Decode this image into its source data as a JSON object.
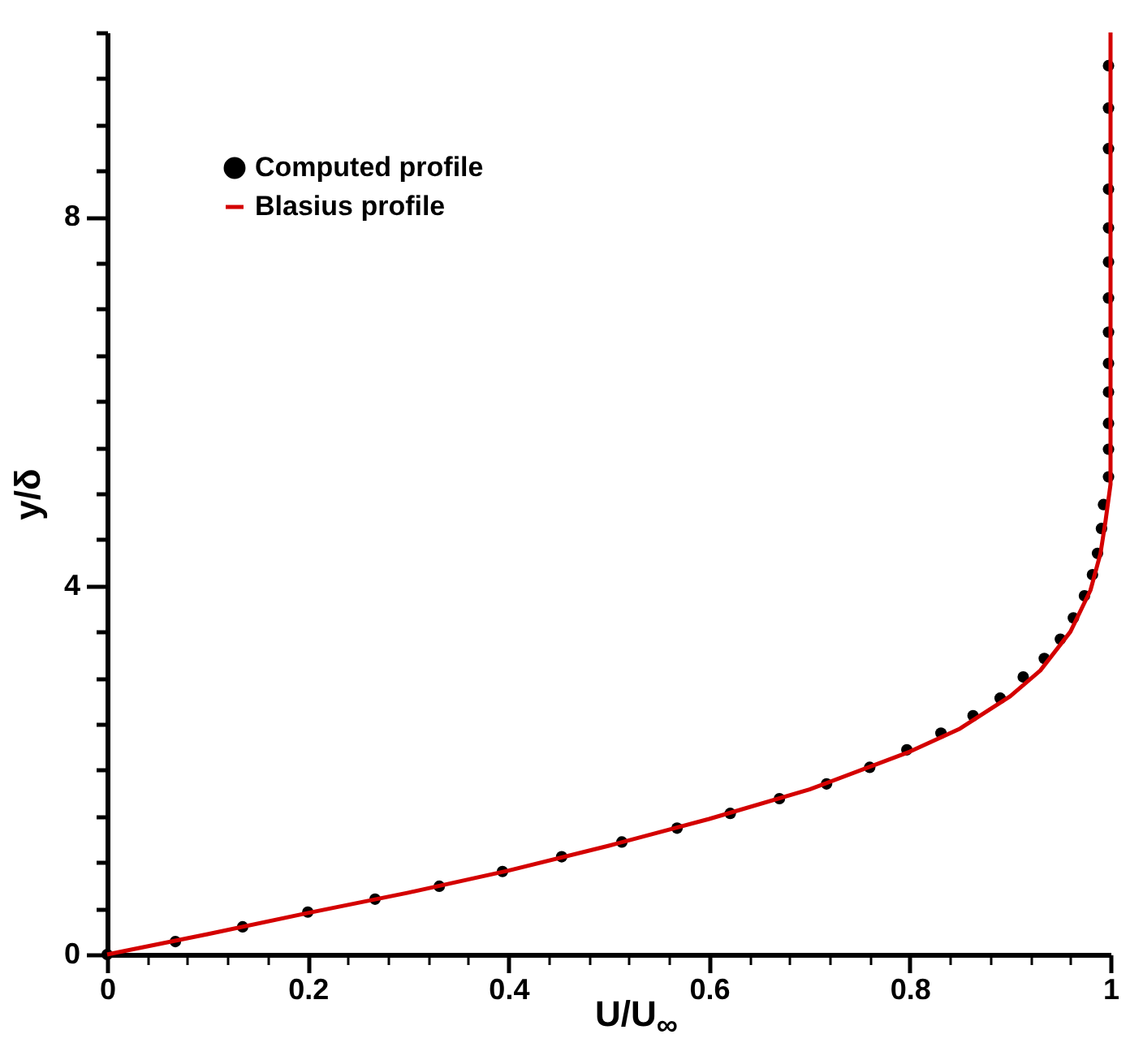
{
  "chart_data": {
    "type": "line",
    "xlabel": "U/U$_{∞}$",
    "ylabel": "y/δ",
    "xlim": [
      0,
      1
    ],
    "ylim": [
      0,
      10
    ],
    "xticks": [
      0,
      {
        "value": 0.04,
        "label": null
      },
      {
        "value": 0.08,
        "label": null
      },
      {
        "value": 0.12,
        "label": null
      },
      {
        "value": 0.16,
        "label": null
      },
      {
        "value": 0.2,
        "label": "0.2"
      },
      {
        "value": 0.24,
        "label": null
      },
      {
        "value": 0.28,
        "label": null
      },
      {
        "value": 0.32,
        "label": null
      },
      {
        "value": 0.36,
        "label": null
      },
      {
        "value": 0.4,
        "label": "0.4"
      },
      {
        "value": 0.44,
        "label": null
      },
      {
        "value": 0.48,
        "label": null
      },
      {
        "value": 0.52,
        "label": null
      },
      {
        "value": 0.56,
        "label": null
      },
      {
        "value": 0.6,
        "label": "0.6"
      },
      {
        "value": 0.64,
        "label": null
      },
      {
        "value": 0.68,
        "label": null
      },
      {
        "value": 0.72,
        "label": null
      },
      {
        "value": 0.76,
        "label": null
      },
      {
        "value": 0.8,
        "label": "0.8"
      },
      {
        "value": 0.84,
        "label": null
      },
      {
        "value": 0.88,
        "label": null
      },
      {
        "value": 0.92,
        "label": null
      },
      {
        "value": 0.96,
        "label": null
      },
      1
    ],
    "yticks": [
      0,
      {
        "value": 0.5,
        "label": null
      },
      {
        "value": 1,
        "label": null
      },
      {
        "value": 1.5,
        "label": null
      },
      {
        "value": 2,
        "label": null
      },
      {
        "value": 2.5,
        "label": null
      },
      {
        "value": 3,
        "label": null
      },
      {
        "value": 3.5,
        "label": null
      },
      4,
      {
        "value": 4.5,
        "label": null
      },
      {
        "value": 5,
        "label": null
      },
      {
        "value": 5.5,
        "label": null
      },
      {
        "value": 6,
        "label": null
      },
      {
        "value": 6.5,
        "label": null
      },
      {
        "value": 7,
        "label": null
      },
      {
        "value": 7.5,
        "label": null
      },
      8,
      {
        "value": 8.5,
        "label": null
      },
      {
        "value": 9,
        "label": null
      },
      {
        "value": 9.5,
        "label": null
      },
      {
        "value": 10,
        "label": null
      }
    ],
    "legend": "top left",
    "series": [
      {
        "name": "Computed profile",
        "type": "scatter",
        "marker": "circle",
        "color": "#000000",
        "x": [
          0,
          0.068,
          0.135,
          0.2,
          0.267,
          0.331,
          0.394,
          0.453,
          0.513,
          0.568,
          0.621,
          0.67,
          0.717,
          0.76,
          0.797,
          0.831,
          0.863,
          0.89,
          0.913,
          0.934,
          0.95,
          0.963,
          0.974,
          0.982,
          0.987,
          0.991,
          0.993,
          0.998,
          0.998,
          0.998,
          0.998,
          0.998,
          0.998,
          0.998,
          0.998,
          0.998,
          0.998,
          0.998,
          0.998,
          0.998
        ],
        "values": [
          0,
          0.14,
          0.3,
          0.46,
          0.6,
          0.74,
          0.9,
          1.06,
          1.22,
          1.37,
          1.53,
          1.69,
          1.85,
          2.03,
          2.22,
          2.4,
          2.59,
          2.78,
          3.01,
          3.21,
          3.42,
          3.65,
          3.89,
          4.12,
          4.35,
          4.62,
          4.88,
          5.18,
          5.48,
          5.76,
          6.1,
          6.41,
          6.75,
          7.12,
          7.51,
          7.88,
          8.3,
          8.74,
          9.18,
          9.64
        ]
      },
      {
        "name": "Blasius profile",
        "type": "line",
        "color": "#d40000",
        "x": [
          0,
          0.1,
          0.2,
          0.3,
          0.4,
          0.5,
          0.6,
          0.7,
          0.8,
          0.85,
          0.9,
          0.93,
          0.96,
          0.98,
          0.99,
          0.995,
          1,
          1
        ],
        "values": [
          0,
          0.22,
          0.45,
          0.67,
          0.91,
          1.18,
          1.47,
          1.79,
          2.2,
          2.45,
          2.8,
          3.08,
          3.5,
          3.95,
          4.35,
          4.7,
          5.1,
          10
        ]
      }
    ]
  }
}
